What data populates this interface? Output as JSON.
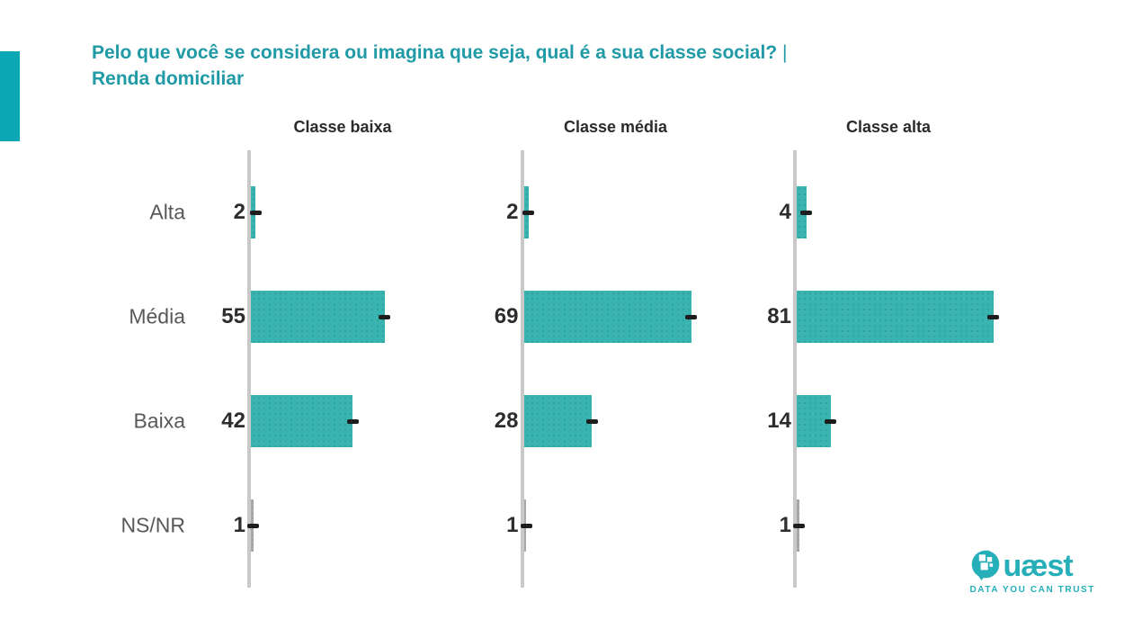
{
  "title": {
    "line1": "Pelo que você se considera ou imagina que seja, qual é a sua classe social?",
    "separator": "|",
    "line2": "Renda domiciliar"
  },
  "chart_data": {
    "type": "bar",
    "orientation": "horizontal",
    "categories": [
      "Alta",
      "Média",
      "Baixa",
      "NS/NR"
    ],
    "series": [
      {
        "name": "Classe baixa",
        "values": [
          2,
          55,
          42,
          1
        ]
      },
      {
        "name": "Classe média",
        "values": [
          2,
          69,
          28,
          1
        ]
      },
      {
        "name": "Classe alta",
        "values": [
          4,
          81,
          14,
          1
        ]
      }
    ],
    "title": "Pelo que você se considera ou imagina que seja, qual é a sua classe social? | Renda domiciliar",
    "xlabel": "",
    "ylabel": "",
    "xlim": [
      0,
      100
    ],
    "grid": false,
    "legend_position": "panel-headers-top",
    "value_labels": "left of axis, bold",
    "markers": "black dash centered at end of each bar",
    "nsnr_bar_style": "gray"
  },
  "logo": {
    "brand": "Quæst",
    "brand_rest": "uæst",
    "tagline": "DATA YOU CAN TRUST"
  },
  "colors": {
    "title_teal": "#1F9AA6",
    "accent_bar": "#0BA7B4",
    "bar_teal": "#3AB4B0",
    "nsnr_bar_gray": "#A9A9A9",
    "axis_gray": "#C9C9C9",
    "dash_black": "#1D1D1D",
    "row_label_gray": "#585858",
    "value_dark": "#2D2D2D",
    "header_dark": "#2B2B2B",
    "logo_teal": "#27AFB9",
    "background": "#FFFFFF"
  }
}
